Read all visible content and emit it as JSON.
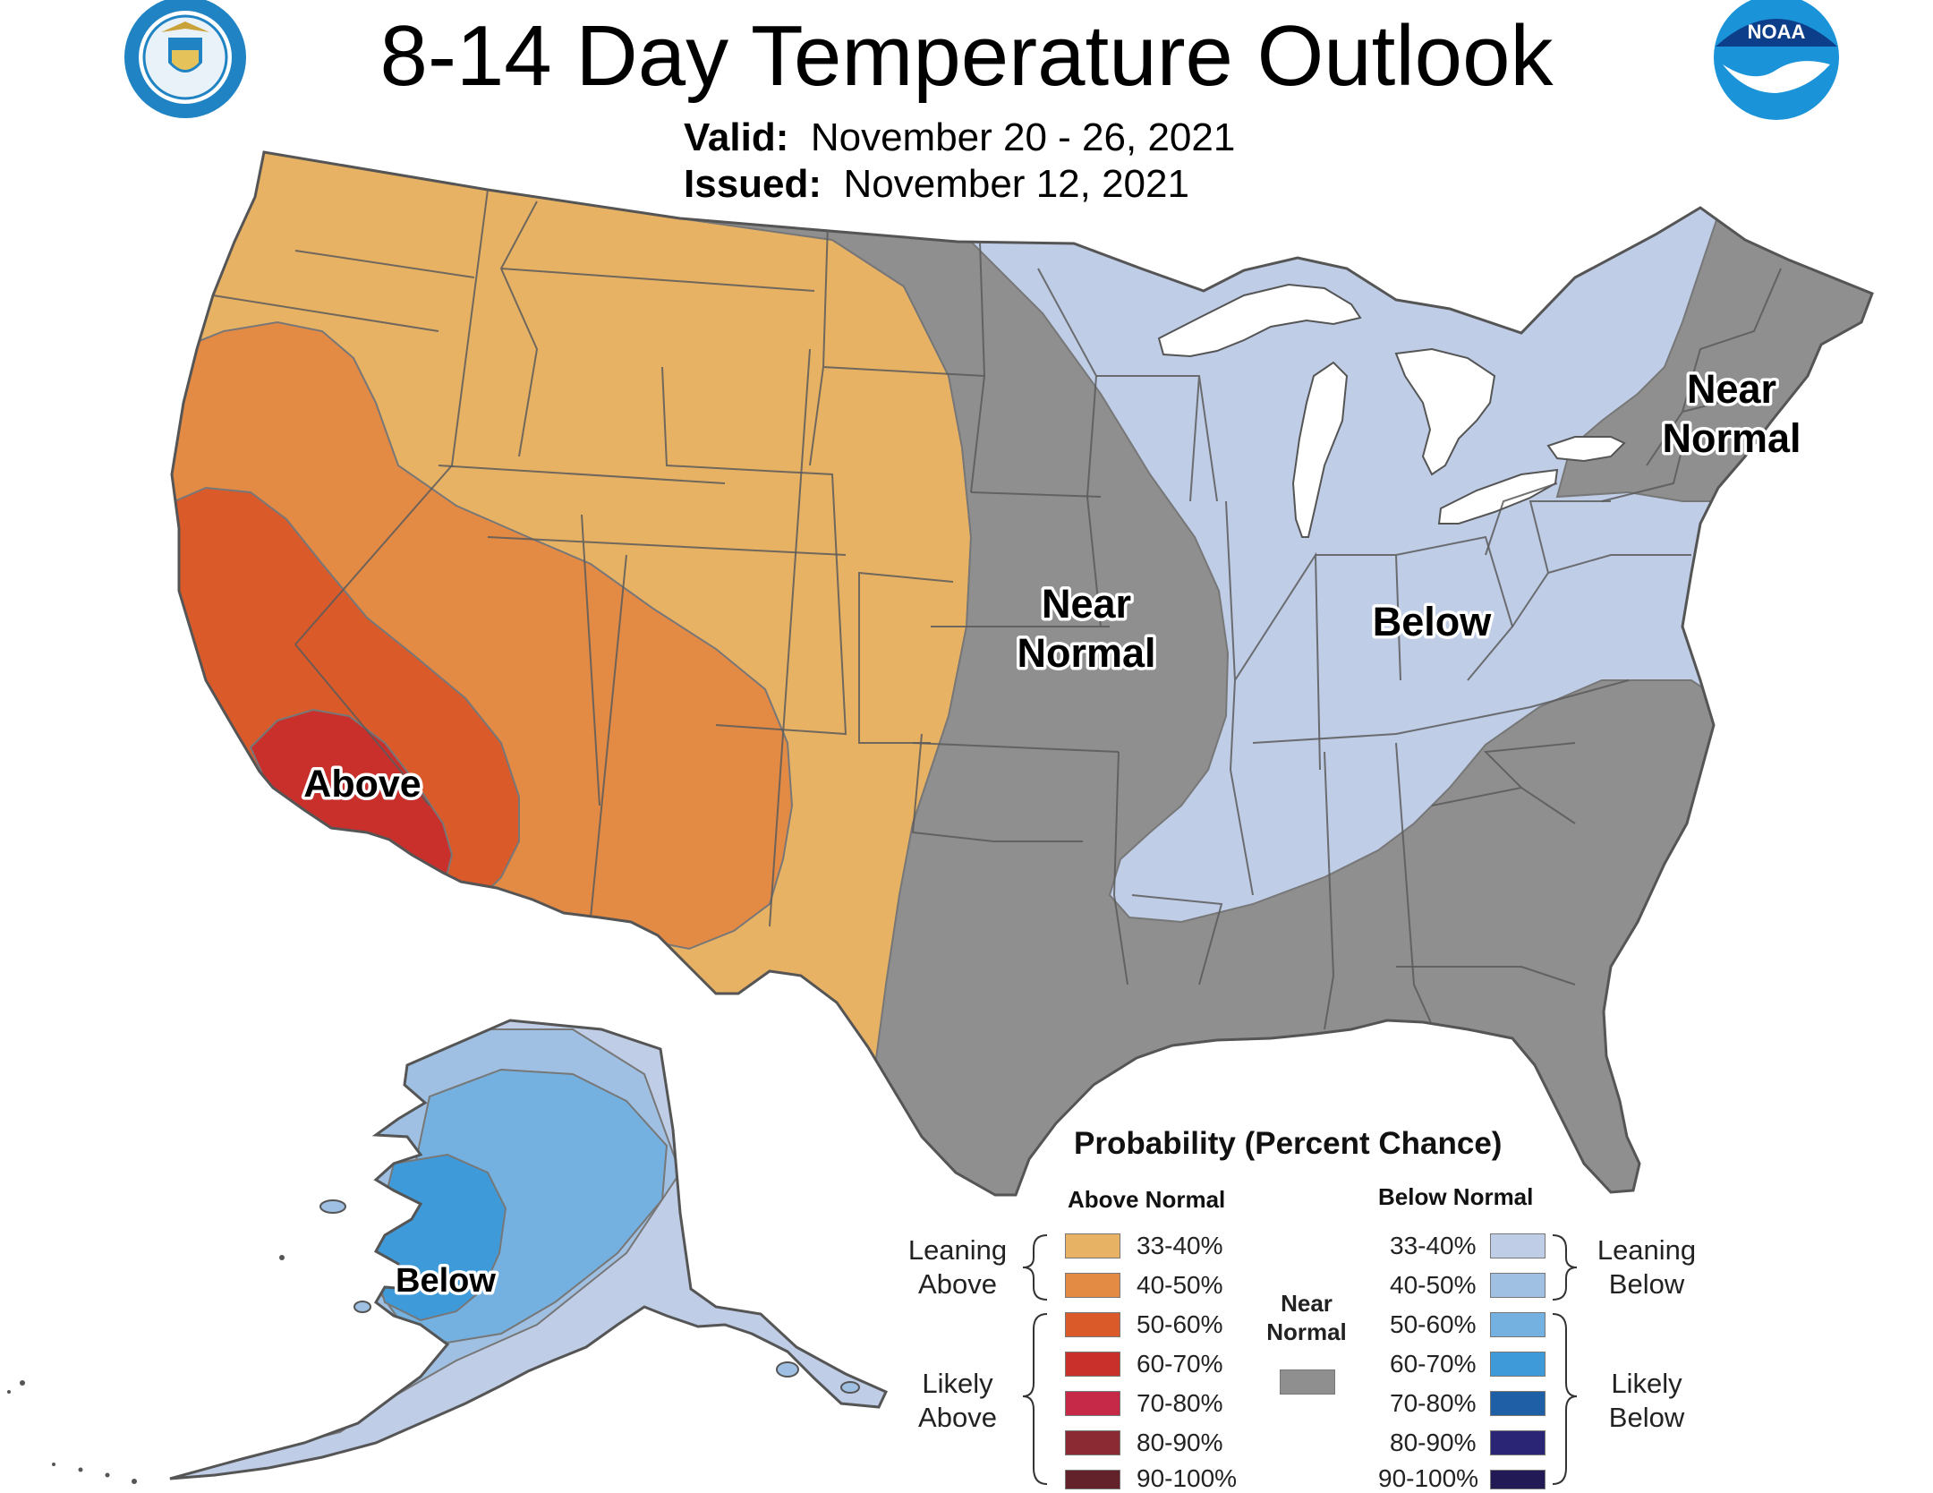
{
  "title": "8-14 Day Temperature Outlook",
  "valid_label": "Valid:",
  "valid_value": "November 20 - 26, 2021",
  "issued_label": "Issued:",
  "issued_value": "November 12, 2021",
  "logos": {
    "left": "department-of-commerce-seal",
    "right": "noaa-logo",
    "noaa_text": "NOAA"
  },
  "regions": {
    "conus_above": "Above",
    "conus_near": [
      "Near",
      "Normal"
    ],
    "conus_below": "Below",
    "northeast_near": [
      "Near",
      "Normal"
    ],
    "alaska_below": "Below"
  },
  "colors": {
    "above_33_40": "#e8b265",
    "above_40_50": "#e38a45",
    "above_50_60": "#db5a2a",
    "above_60_70": "#c9302c",
    "above_70_80": "#c62848",
    "above_80_90": "#8c2a33",
    "above_90_100": "#63222a",
    "near_normal": "#8f8f8f",
    "below_33_40": "#bfcde7",
    "below_40_50": "#9fc0e2",
    "below_50_60": "#74b1e0",
    "below_60_70": "#3f9ad9",
    "below_70_80": "#1f5fa6",
    "below_80_90": "#2b2575",
    "below_90_100": "#221a55",
    "land_border": "#555555"
  },
  "legend": {
    "title": "Probability (Percent Chance)",
    "above_header": "Above Normal",
    "below_header": "Below Normal",
    "near_label": [
      "Near",
      "Normal"
    ],
    "leaning_above": [
      "Leaning",
      "Above"
    ],
    "likely_above": [
      "Likely",
      "Above"
    ],
    "leaning_below": [
      "Leaning",
      "Below"
    ],
    "likely_below": [
      "Likely",
      "Below"
    ],
    "above_ranges": [
      "33-40%",
      "40-50%",
      "50-60%",
      "60-70%",
      "70-80%",
      "80-90%",
      "90-100%"
    ],
    "below_ranges": [
      "33-40%",
      "40-50%",
      "50-60%",
      "60-70%",
      "70-80%",
      "80-90%",
      "90-100%"
    ]
  }
}
